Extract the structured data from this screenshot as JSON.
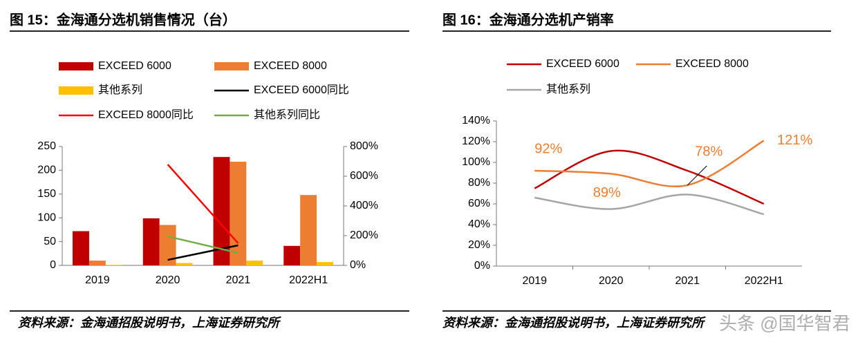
{
  "chart_data": [
    {
      "type": "bar",
      "title": "图 15：金海通分选机销售情况（台）",
      "source": "资料来源：金海通招股说明书，上海证券研究所",
      "categories": [
        "2019",
        "2020",
        "2021",
        "2022H1"
      ],
      "series": [
        {
          "name": "EXCEED 6000",
          "color": "#c00000",
          "values": [
            72,
            99,
            228,
            41
          ]
        },
        {
          "name": "EXCEED 8000",
          "color": "#ed7d31",
          "values": [
            10,
            85,
            218,
            148
          ]
        },
        {
          "name": "其他系列",
          "color": "#ffc000",
          "values": [
            1,
            5,
            10,
            7
          ]
        },
        {
          "name": "EXCEED 6000同比",
          "color": "#000000",
          "axis": "y2",
          "values": [
            null,
            37,
            135,
            null
          ]
        },
        {
          "name": "EXCEED 8000同比",
          "color": "#ff0000",
          "axis": "y2",
          "values": [
            null,
            679,
            149,
            null
          ]
        },
        {
          "name": "其他系列同比",
          "color": "#70ad47",
          "axis": "y2",
          "values": [
            null,
            195,
            84,
            null
          ]
        }
      ],
      "ylim": [
        0,
        250
      ],
      "yticks": [
        0,
        50,
        100,
        150,
        200,
        250
      ],
      "y2lim": [
        0,
        800
      ],
      "y2ticks": [
        {
          "value": 0,
          "label": "0%"
        },
        {
          "value": 200,
          "label": "200%"
        },
        {
          "value": 400,
          "label": "400%"
        },
        {
          "value": 600,
          "label": "600%"
        },
        {
          "value": 800,
          "label": "800%"
        }
      ]
    },
    {
      "type": "line",
      "title": "图 16：金海通分选机产销率",
      "source": "资料来源：金海通招股说明书，上海证券研究所",
      "categories": [
        "2019",
        "2020",
        "2021",
        "2022H1"
      ],
      "series": [
        {
          "name": "EXCEED 6000",
          "color": "#c00000",
          "values": [
            75,
            111,
            92,
            60
          ]
        },
        {
          "name": "EXCEED 8000",
          "color": "#ed7d31",
          "values": [
            92,
            89,
            78,
            121
          ],
          "value_labels": [
            "92%",
            "89%",
            "78%",
            "121%"
          ]
        },
        {
          "name": "其他系列",
          "color": "#a5a5a5",
          "values": [
            66,
            55,
            69,
            50
          ]
        }
      ],
      "ylim": [
        0,
        140
      ],
      "yticks": [
        {
          "value": 0,
          "label": "0%"
        },
        {
          "value": 20,
          "label": "20%"
        },
        {
          "value": 40,
          "label": "40%"
        },
        {
          "value": 60,
          "label": "60%"
        },
        {
          "value": 80,
          "label": "80%"
        },
        {
          "value": 100,
          "label": "100%"
        },
        {
          "value": 120,
          "label": "120%"
        },
        {
          "value": 140,
          "label": "140%"
        }
      ]
    }
  ],
  "watermark": "头条 @国华智君"
}
